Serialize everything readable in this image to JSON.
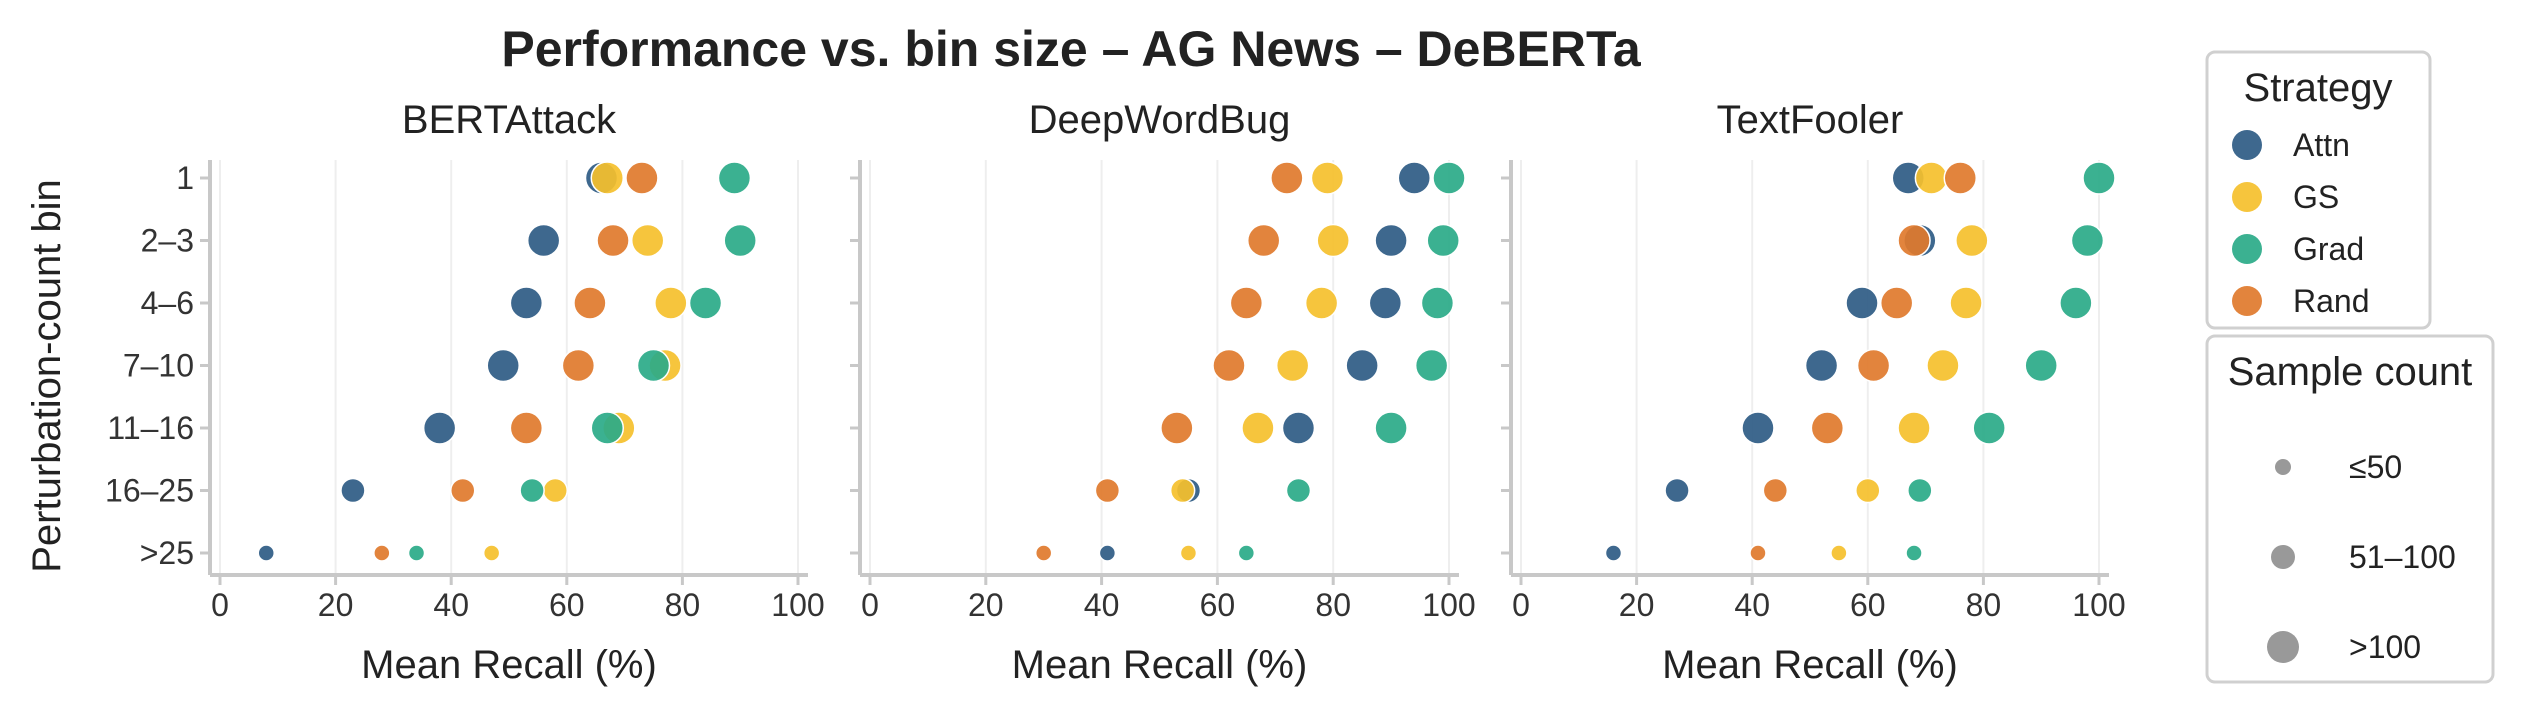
{
  "chart_data": {
    "type": "scatter",
    "title": "Performance vs. bin size – AG News – DeBERTa",
    "xlabel": "Mean Recall (%)",
    "ylabel": "Perturbation-count bin",
    "xlim": [
      0,
      100
    ],
    "xticks": [
      "0",
      "20",
      "40",
      "60",
      "80",
      "100"
    ],
    "bins": [
      "1",
      "2–3",
      "4–6",
      "7–10",
      "11–16",
      "16–25",
      ">25"
    ],
    "grid": "vertical",
    "legend_position": "right",
    "strategy_legend": {
      "title": "Strategy",
      "entries": [
        {
          "name": "Attn",
          "color": "#2e5b84"
        },
        {
          "name": "GS",
          "color": "#f5c02d"
        },
        {
          "name": "Grad",
          "color": "#2aaa88"
        },
        {
          "name": "Rand",
          "color": "#e07a2c"
        }
      ]
    },
    "size_legend": {
      "title": "Sample count",
      "entries": [
        {
          "label": "≤50",
          "size": 1
        },
        {
          "label": "51–100",
          "size": 2
        },
        {
          "label": ">100",
          "size": 3
        }
      ]
    },
    "panels": [
      {
        "title": "BERTAttack",
        "series": [
          {
            "name": "Attn",
            "values": [
              66,
              56,
              53,
              49,
              38,
              23,
              8
            ],
            "sizes": [
              3,
              3,
              3,
              3,
              3,
              2,
              1
            ]
          },
          {
            "name": "GS",
            "values": [
              67,
              74,
              78,
              77,
              69,
              58,
              47
            ],
            "sizes": [
              3,
              3,
              3,
              3,
              3,
              2,
              1
            ]
          },
          {
            "name": "Grad",
            "values": [
              89,
              90,
              84,
              75,
              67,
              54,
              34
            ],
            "sizes": [
              3,
              3,
              3,
              3,
              3,
              2,
              1
            ]
          },
          {
            "name": "Rand",
            "values": [
              73,
              68,
              64,
              62,
              53,
              42,
              28
            ],
            "sizes": [
              3,
              3,
              3,
              3,
              3,
              2,
              1
            ]
          }
        ]
      },
      {
        "title": "DeepWordBug",
        "series": [
          {
            "name": "Attn",
            "values": [
              94,
              90,
              89,
              85,
              74,
              55,
              41
            ],
            "sizes": [
              3,
              3,
              3,
              3,
              3,
              2,
              1
            ]
          },
          {
            "name": "GS",
            "values": [
              79,
              80,
              78,
              73,
              67,
              54,
              55
            ],
            "sizes": [
              3,
              3,
              3,
              3,
              3,
              2,
              1
            ]
          },
          {
            "name": "Grad",
            "values": [
              100,
              99,
              98,
              97,
              90,
              74,
              65
            ],
            "sizes": [
              3,
              3,
              3,
              3,
              3,
              2,
              1
            ]
          },
          {
            "name": "Rand",
            "values": [
              72,
              68,
              65,
              62,
              53,
              41,
              30
            ],
            "sizes": [
              3,
              3,
              3,
              3,
              3,
              2,
              1
            ]
          }
        ]
      },
      {
        "title": "TextFooler",
        "series": [
          {
            "name": "Attn",
            "values": [
              67,
              69,
              59,
              52,
              41,
              27,
              16
            ],
            "sizes": [
              3,
              3,
              3,
              3,
              3,
              2,
              1
            ]
          },
          {
            "name": "GS",
            "values": [
              71,
              78,
              77,
              73,
              68,
              60,
              55
            ],
            "sizes": [
              3,
              3,
              3,
              3,
              3,
              2,
              1
            ]
          },
          {
            "name": "Grad",
            "values": [
              100,
              98,
              96,
              90,
              81,
              69,
              68
            ],
            "sizes": [
              3,
              3,
              3,
              3,
              3,
              2,
              1
            ]
          },
          {
            "name": "Rand",
            "values": [
              76,
              68,
              65,
              61,
              53,
              44,
              41
            ],
            "sizes": [
              3,
              3,
              3,
              3,
              3,
              2,
              1
            ]
          }
        ]
      }
    ]
  }
}
